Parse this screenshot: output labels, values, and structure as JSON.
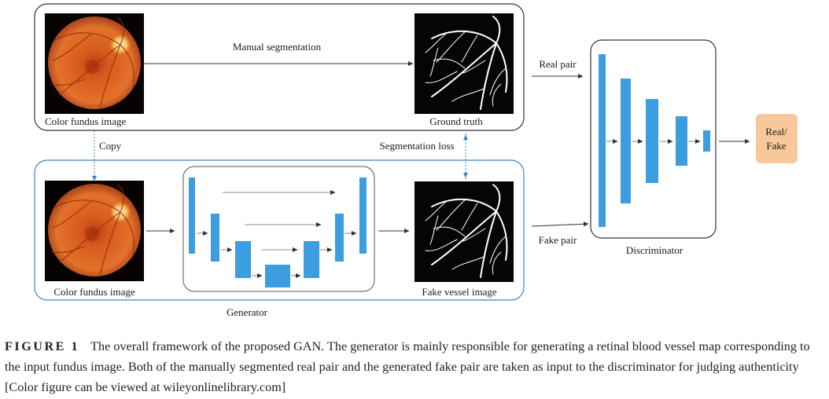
{
  "figure": {
    "top_box": {
      "input_label": "Color fundus image",
      "arrow_label": "Manual segmentation",
      "target_label": "Ground truth"
    },
    "links": {
      "copy_label": "Copy",
      "loss_label": "Segmentation loss"
    },
    "bottom_box": {
      "input_label": "Color fundus image",
      "generator_label": "Generator",
      "output_label": "Fake vessel image"
    },
    "pairs": {
      "real_label": "Real pair",
      "fake_label": "Fake pair"
    },
    "discriminator": {
      "label": "Discriminator",
      "output_line1": "Real/",
      "output_line2": "Fake"
    },
    "colors": {
      "block_blue": "#3c9ee0",
      "output_orange": "#f8c89a",
      "bottom_frame_blue": "#3d85c6",
      "fundus_orange": "#d2561f"
    }
  },
  "caption": {
    "label": "FIGURE 1",
    "text": "The overall framework of the proposed GAN. The generator is mainly responsible for generating a retinal blood vessel map corresponding to the input fundus image. Both of the manually segmented real pair and the generated fake pair are taken as input to the discriminator for judging authenticity [Color figure can be viewed at wileyonlinelibrary.com]"
  }
}
